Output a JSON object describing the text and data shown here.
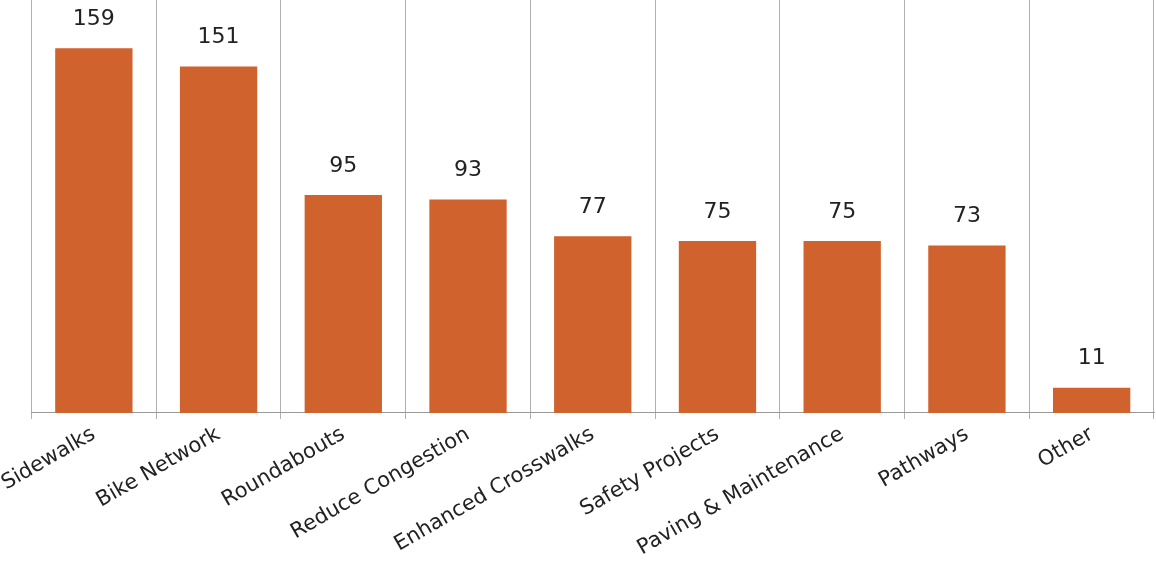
{
  "chart_data": {
    "type": "bar",
    "categories": [
      "Sidewalks",
      "Bike Network",
      "Roundabouts",
      "Reduce Congestion",
      "Enhanced Crosswalks",
      "Safety Projects",
      "Paving & Maintenance",
      "Pathways",
      "Other"
    ],
    "values": [
      159,
      151,
      95,
      93,
      77,
      75,
      75,
      73,
      11
    ],
    "color": "#d0622e",
    "relative": false,
    "data_labels": true,
    "grid": "x",
    "legend": false
  }
}
